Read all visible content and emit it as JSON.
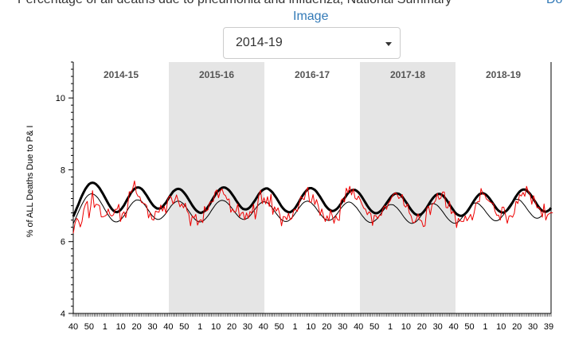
{
  "header": {
    "title": "Percentage of all deaths due to pneumonia and influenza, National Summary",
    "right_link": "Do",
    "image_link": "Image"
  },
  "season_select": {
    "selected": "2014-19"
  },
  "colors": {
    "observed": "#ee0000",
    "baseline": "#000000",
    "threshold": "#000000",
    "shade": "#e5e5e5"
  },
  "chart_data": {
    "type": "line",
    "title": "",
    "xlabel": "",
    "ylabel": "% of ALL Deaths Due to P& I",
    "ylim": [
      4,
      11
    ],
    "yticks": [
      4,
      6,
      8,
      10
    ],
    "grid": false,
    "x_tick_labels": [
      "40",
      "50",
      "1",
      "10",
      "20",
      "30",
      "40",
      "50",
      "1",
      "10",
      "20",
      "30",
      "40",
      "50",
      "1",
      "10",
      "20",
      "30",
      "40",
      "50",
      "1",
      "10",
      "20",
      "30",
      "40",
      "50",
      "1",
      "10",
      "20",
      "30",
      "39"
    ],
    "seasons": [
      {
        "label": "2014-15",
        "shaded": false
      },
      {
        "label": "2015-16",
        "shaded": true
      },
      {
        "label": "2016-17",
        "shaded": false
      },
      {
        "label": "2017-18",
        "shaded": true
      },
      {
        "label": "2018-19",
        "shaded": false
      }
    ],
    "series": [
      {
        "key": "threshold",
        "values": [
          6.7,
          6.81,
          6.93,
          7.04,
          7.17,
          7.28,
          7.38,
          7.47,
          7.54,
          7.6,
          7.63,
          7.64,
          7.63,
          7.6,
          7.55,
          7.49,
          7.41,
          7.33,
          7.24,
          7.15,
          7.06,
          6.98,
          6.91,
          6.86,
          6.83,
          6.82,
          6.84,
          6.88,
          6.94,
          7.01,
          7.1,
          7.19,
          7.27,
          7.36,
          7.42,
          7.47,
          7.5,
          7.51,
          7.5,
          7.47,
          7.42,
          7.35,
          7.28,
          7.2,
          7.12,
          7.05,
          6.99,
          6.95,
          6.92,
          6.92,
          6.93,
          6.97,
          7.03,
          7.09,
          7.17,
          7.25,
          7.32,
          7.39,
          7.43,
          7.46,
          7.47,
          7.46,
          7.43,
          7.38,
          7.32,
          7.25,
          7.17,
          7.09,
          7.01,
          6.94,
          6.88,
          6.84,
          6.81,
          6.8,
          6.82,
          6.85,
          6.9,
          6.97,
          7.04,
          7.13,
          7.21,
          7.29,
          7.37,
          7.42,
          7.47,
          7.5,
          7.51,
          7.5,
          7.47,
          7.43,
          7.37,
          7.3,
          7.23,
          7.15,
          7.08,
          7.01,
          6.95,
          6.91,
          6.9,
          6.9,
          6.92,
          6.96,
          7.02,
          7.09,
          7.16,
          7.24,
          7.32,
          7.38,
          7.43,
          7.46,
          7.48,
          7.48,
          7.45,
          7.41,
          7.36,
          7.29,
          7.22,
          7.14,
          7.06,
          6.98,
          6.92,
          6.87,
          6.84,
          6.82,
          6.82,
          6.85,
          6.89,
          6.95,
          7.03,
          7.11,
          7.2,
          7.28,
          7.35,
          7.41,
          7.46,
          7.49,
          7.49,
          7.47,
          7.44,
          7.39,
          7.32,
          7.25,
          7.17,
          7.09,
          7.01,
          6.95,
          6.9,
          6.87,
          6.85,
          6.86,
          6.89,
          6.93,
          6.99,
          7.06,
          7.13,
          7.21,
          7.28,
          7.35,
          7.4,
          7.43,
          7.44,
          7.44,
          7.41,
          7.37,
          7.31,
          7.24,
          7.16,
          7.08,
          7.0,
          6.93,
          6.87,
          6.83,
          6.8,
          6.79,
          6.8,
          6.83,
          6.87,
          6.93,
          7.0,
          7.07,
          7.14,
          7.21,
          7.27,
          7.31,
          7.34,
          7.34,
          7.33,
          7.3,
          7.25,
          7.18,
          7.11,
          7.04,
          6.96,
          6.89,
          6.83,
          6.78,
          6.75,
          6.74,
          6.75,
          6.77,
          6.82,
          6.88,
          6.95,
          7.03,
          7.11,
          7.18,
          7.24,
          7.29,
          7.32,
          7.33,
          7.32,
          7.29,
          7.24,
          7.18,
          7.11,
          7.03,
          6.96,
          6.89,
          6.82,
          6.77,
          6.74,
          6.72,
          6.72,
          6.74,
          6.78,
          6.83,
          6.9,
          6.98,
          7.06,
          7.14,
          7.21,
          7.27,
          7.32,
          7.34,
          7.35,
          7.33,
          7.3,
          7.25,
          7.19,
          7.12,
          7.05,
          6.98,
          6.91,
          6.86,
          6.83,
          6.81,
          6.81,
          6.84,
          6.88,
          6.94,
          7.01,
          7.09,
          7.18,
          7.26,
          7.33,
          7.39,
          7.43,
          7.45,
          7.45,
          7.43,
          7.38,
          7.33,
          7.26,
          7.18,
          7.11,
          7.03,
          6.96,
          6.9,
          6.86,
          6.84,
          6.83,
          6.85,
          6.88,
          6.94
        ]
      },
      {
        "key": "baseline",
        "values": [
          6.5,
          6.61,
          6.72,
          6.83,
          6.94,
          7.04,
          7.13,
          7.21,
          7.27,
          7.31,
          7.33,
          7.33,
          7.31,
          7.27,
          7.22,
          7.15,
          7.07,
          6.99,
          6.9,
          6.82,
          6.74,
          6.67,
          6.61,
          6.57,
          6.55,
          6.55,
          6.57,
          6.6,
          6.66,
          6.72,
          6.8,
          6.88,
          6.96,
          7.03,
          7.09,
          7.13,
          7.16,
          7.16,
          7.15,
          7.12,
          7.07,
          7.01,
          6.94,
          6.87,
          6.8,
          6.73,
          6.68,
          6.64,
          6.62,
          6.62,
          6.64,
          6.68,
          6.73,
          6.79,
          6.86,
          6.93,
          7.0,
          7.05,
          7.09,
          7.12,
          7.13,
          7.12,
          7.09,
          7.05,
          6.99,
          6.92,
          6.85,
          6.78,
          6.71,
          6.65,
          6.6,
          6.57,
          6.55,
          6.55,
          6.57,
          6.61,
          6.66,
          6.72,
          6.79,
          6.87,
          6.94,
          7.01,
          7.07,
          7.11,
          7.14,
          7.15,
          7.14,
          7.12,
          7.08,
          7.03,
          6.97,
          6.91,
          6.84,
          6.78,
          6.72,
          6.67,
          6.64,
          6.62,
          6.62,
          6.64,
          6.67,
          6.72,
          6.78,
          6.85,
          6.91,
          6.98,
          7.03,
          7.07,
          7.1,
          7.11,
          7.1,
          7.08,
          7.03,
          6.98,
          6.92,
          6.85,
          6.78,
          6.72,
          6.66,
          6.61,
          6.58,
          6.56,
          6.56,
          6.58,
          6.62,
          6.67,
          6.73,
          6.8,
          6.87,
          6.94,
          7.0,
          7.06,
          7.1,
          7.12,
          7.13,
          7.11,
          7.08,
          7.03,
          6.98,
          6.91,
          6.84,
          6.78,
          6.72,
          6.66,
          6.62,
          6.6,
          6.59,
          6.6,
          6.63,
          6.67,
          6.73,
          6.79,
          6.86,
          6.93,
          6.99,
          7.04,
          7.08,
          7.1,
          7.1,
          7.08,
          7.04,
          6.99,
          6.94,
          6.87,
          6.8,
          6.73,
          6.67,
          6.61,
          6.57,
          6.54,
          6.53,
          6.54,
          6.57,
          6.61,
          6.66,
          6.73,
          6.79,
          6.86,
          6.92,
          6.97,
          7.01,
          7.03,
          7.03,
          7.02,
          6.98,
          6.94,
          6.88,
          6.82,
          6.75,
          6.68,
          6.62,
          6.57,
          6.53,
          6.51,
          6.51,
          6.53,
          6.56,
          6.61,
          6.67,
          6.74,
          6.81,
          6.88,
          6.95,
          7.0,
          7.04,
          7.06,
          7.06,
          7.04,
          7.01,
          6.96,
          6.9,
          6.84,
          6.77,
          6.7,
          6.64,
          6.59,
          6.55,
          6.52,
          6.51,
          6.52,
          6.55,
          6.6,
          6.66,
          6.72,
          6.8,
          6.87,
          6.94,
          7.0,
          7.04,
          7.07,
          7.08,
          7.07,
          7.04,
          6.99,
          6.94,
          6.88,
          6.81,
          6.75,
          6.69,
          6.64,
          6.6,
          6.58,
          6.58,
          6.6,
          6.64,
          6.7,
          6.76,
          6.84,
          6.92,
          6.99,
          7.06,
          7.12,
          7.16,
          7.18,
          7.18,
          7.16,
          7.12,
          7.06,
          7.0,
          6.93,
          6.86,
          6.8,
          6.74,
          6.69,
          6.66,
          6.65,
          6.66,
          6.69,
          6.74
        ]
      },
      {
        "key": "observed",
        "values": [
          6.23,
          6.51,
          6.65,
          6.58,
          6.41,
          6.56,
          6.89,
          7.04,
          7.12,
          6.66,
          6.99,
          7.42,
          6.95,
          7.04,
          7.03,
          7.0,
          6.69,
          6.69,
          6.71,
          6.74,
          6.91,
          6.75,
          6.71,
          6.75,
          6.9,
          6.9,
          7.04,
          6.56,
          6.77,
          6.83,
          6.67,
          6.95,
          7.39,
          7.36,
          7.48,
          7.69,
          7.36,
          7.26,
          7.25,
          7.09,
          7.07,
          7.05,
          7.0,
          6.66,
          6.8,
          6.62,
          6.6,
          6.85,
          6.83,
          6.82,
          7.02,
          6.85,
          6.98,
          6.78,
          7.18,
          7.27,
          7.23,
          7.05,
          7.15,
          7.3,
          7.13,
          6.97,
          7.05,
          6.94,
          7.07,
          6.86,
          6.77,
          6.44,
          6.72,
          6.66,
          6.76,
          6.46,
          6.58,
          6.61,
          6.53,
          6.98,
          6.85,
          6.89,
          7.1,
          7.1,
          7.12,
          7.38,
          7.44,
          7.22,
          7.41,
          7.47,
          7.32,
          7.28,
          7.16,
          7.19,
          6.82,
          6.91,
          6.82,
          6.84,
          7.05,
          6.69,
          6.79,
          6.82,
          6.61,
          6.8,
          6.65,
          6.84,
          6.79,
          7.04,
          6.63,
          6.89,
          7.29,
          7.43,
          7.06,
          7.22,
          7.05,
          7.25,
          6.98,
          7.32,
          6.76,
          6.97,
          6.85,
          6.94,
          6.76,
          6.44,
          6.7,
          6.69,
          6.61,
          6.79,
          6.61,
          6.65,
          6.88,
          6.9,
          6.84,
          7.04,
          7.26,
          7.2,
          7.17,
          7.41,
          7.51,
          7.1,
          7.1,
          7.31,
          7.03,
          7.17,
          7.0,
          6.73,
          6.91,
          6.71,
          6.56,
          6.72,
          6.58,
          6.88,
          6.72,
          6.51,
          6.72,
          6.61,
          6.59,
          7.15,
          7.2,
          7.1,
          7.49,
          7.36,
          7.54,
          7.3,
          7.47,
          7.21,
          7.17,
          7.27,
          7.16,
          7.04,
          6.93,
          6.9,
          6.75,
          6.83,
          6.78,
          6.45,
          6.73,
          6.72,
          6.64,
          6.74,
          6.73,
          6.92,
          7.0,
          6.9,
          7.06,
          7.13,
          7.24,
          7.32,
          7.36,
          7.32,
          7.2,
          7.24,
          7.31,
          7.01,
          6.96,
          7.05,
          6.8,
          6.72,
          6.53,
          6.53,
          6.62,
          6.77,
          6.6,
          6.58,
          6.42,
          6.44,
          6.93,
          6.99,
          6.75,
          7.03,
          7.07,
          7.14,
          7.34,
          7.18,
          7.21,
          7.38,
          7.38,
          6.95,
          6.94,
          7.12,
          6.78,
          6.84,
          6.77,
          6.39,
          6.65,
          6.58,
          6.56,
          6.56,
          6.72,
          6.58,
          6.66,
          6.76,
          6.6,
          6.79,
          7.05,
          7.11,
          7.11,
          7.48,
          7.32,
          7.32,
          7.19,
          7.15,
          7.11,
          7.08,
          7.06,
          6.84,
          6.73,
          6.74,
          6.6,
          6.96,
          6.96,
          6.74,
          6.51,
          6.71,
          6.72,
          6.68,
          6.79,
          7.13,
          7.06,
          7.31,
          7.27,
          7.37,
          7.26,
          7.54,
          7.39,
          7.32,
          7.04,
          7.28,
          7.1,
          6.94,
          6.96,
          6.87,
          6.68,
          7.05,
          6.6,
          6.74,
          6.78,
          6.81,
          6.8
        ]
      }
    ]
  }
}
